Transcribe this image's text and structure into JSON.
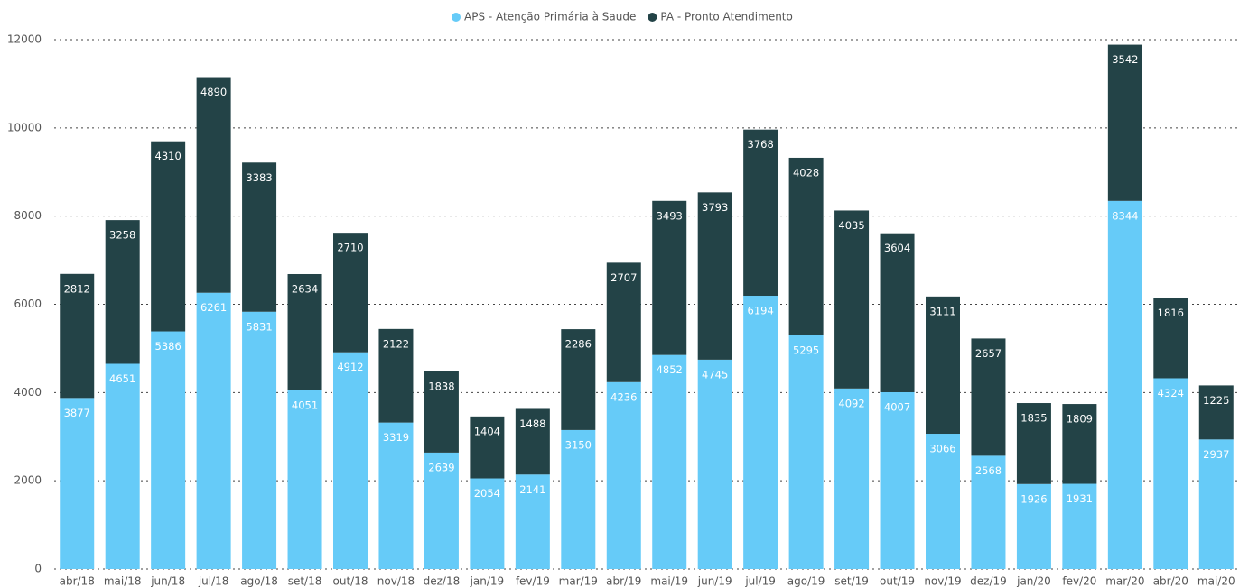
{
  "chart_data": {
    "type": "stacked-bar",
    "categories": [
      "abr/18",
      "mai/18",
      "jun/18",
      "jul/18",
      "ago/18",
      "set/18",
      "out/18",
      "nov/18",
      "dez/18",
      "jan/19",
      "fev/19",
      "mar/19",
      "abr/19",
      "mai/19",
      "jun/19",
      "jul/19",
      "ago/19",
      "set/19",
      "out/19",
      "nov/19",
      "dez/19",
      "jan/20",
      "fev/20",
      "mar/20",
      "abr/20",
      "mai/20"
    ],
    "series": [
      {
        "name": "APS - Atenção Primária à Saude",
        "color": "#66cbf8",
        "values": [
          3877,
          4651,
          5386,
          6261,
          5831,
          4051,
          4912,
          3319,
          2639,
          2054,
          2141,
          3150,
          4236,
          4852,
          4745,
          6194,
          5295,
          4092,
          4007,
          3066,
          2568,
          1926,
          1931,
          8344,
          4324,
          2937
        ]
      },
      {
        "name": "PA - Pronto Atendimento",
        "color": "#234347",
        "values": [
          2812,
          3258,
          4310,
          4890,
          3383,
          2634,
          2710,
          2122,
          1838,
          1404,
          1488,
          2286,
          2707,
          3493,
          3793,
          3768,
          4028,
          4035,
          3604,
          3111,
          2657,
          1835,
          1809,
          3542,
          1816,
          1225
        ]
      }
    ],
    "ylim": [
      0,
      12000
    ],
    "yticks": [
      0,
      2000,
      4000,
      6000,
      8000,
      10000,
      12000
    ],
    "grid": true,
    "legend": "top"
  }
}
